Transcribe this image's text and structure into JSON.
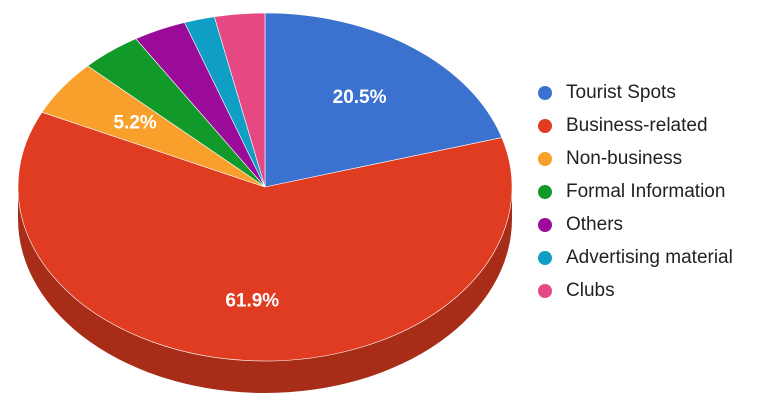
{
  "chart_data": {
    "type": "pie",
    "title": "",
    "categories": [
      "Tourist Spots",
      "Business-related",
      "Non-business",
      "Formal Information",
      "Others",
      "Advertising material",
      "Clubs"
    ],
    "values": [
      20.5,
      61.9,
      5.2,
      4.0,
      3.5,
      2.0,
      3.3
    ],
    "data_labels": [
      "20.5%",
      "61.9%",
      "5.2%",
      "",
      "",
      "",
      ""
    ],
    "colors": [
      "#3b72d0",
      "#e03c22",
      "#f9a02c",
      "#119a2a",
      "#9a0b9a",
      "#0f9fc5",
      "#e64883"
    ],
    "side_colors": [
      "#2c559c",
      "#a82d19",
      "#bb7820",
      "#0d741f",
      "#730873",
      "#0b7794",
      "#ac3662"
    ],
    "legend_position": "right",
    "style": "3d"
  }
}
